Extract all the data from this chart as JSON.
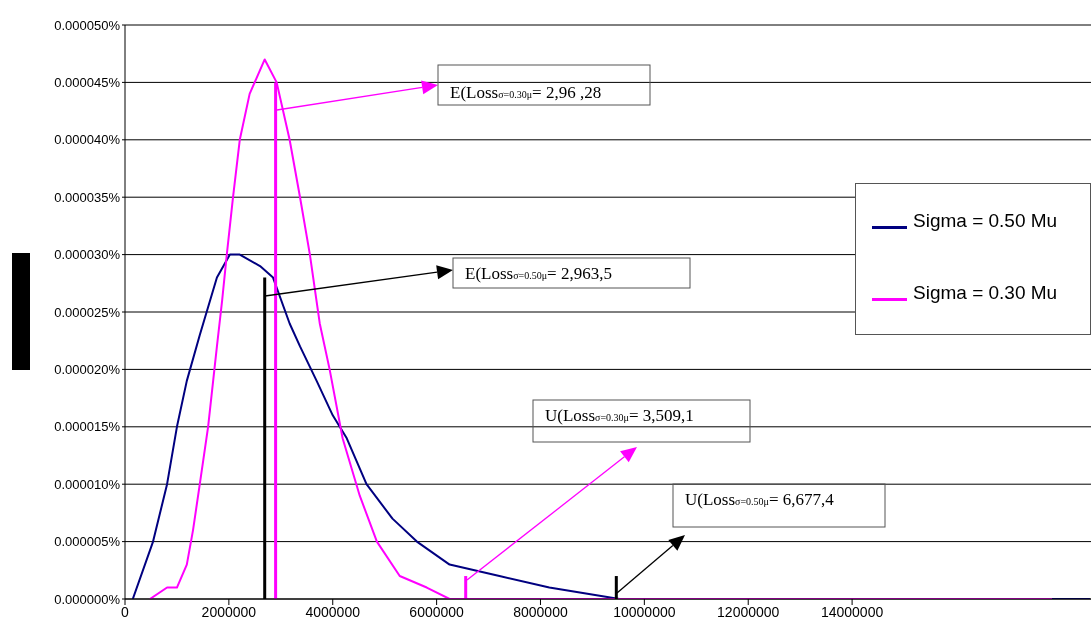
{
  "chart_data": {
    "type": "line",
    "xlim": [
      0,
      18600000
    ],
    "xticks": [
      0,
      2000000,
      4000000,
      6000000,
      8000000,
      10000000,
      12000000,
      14000000
    ],
    "ylim": [
      0,
      5e-05
    ],
    "yticks": [
      {
        "value": 0,
        "label": "0.000000%"
      },
      {
        "value": 5e-06,
        "label": "0.000005%"
      },
      {
        "value": 1e-05,
        "label": "0.000010%"
      },
      {
        "value": 1.5e-05,
        "label": "0.000015%"
      },
      {
        "value": 2e-05,
        "label": "0.000020%"
      },
      {
        "value": 2.5e-05,
        "label": "0.000025%"
      },
      {
        "value": 3e-05,
        "label": "0.000030%"
      },
      {
        "value": 3.5e-05,
        "label": "0.000035%"
      },
      {
        "value": 4e-05,
        "label": "0.000040%"
      },
      {
        "value": 4.5e-05,
        "label": "0.000045%"
      },
      {
        "value": 5e-05,
        "label": "0.000050%"
      }
    ],
    "grid": "y",
    "legend": "right",
    "series": [
      {
        "name": "Sigma = 0.50 Mu",
        "color": "#000080",
        "x": [
          150000,
          540000,
          810000,
          1000000,
          1190000,
          1440000,
          1770000,
          2020000,
          2210000,
          2600000,
          2850000,
          3170000,
          3370000,
          3690000,
          4000000,
          4270000,
          4650000,
          5150000,
          5620000,
          6250000,
          7210000,
          8170000,
          9520000,
          18580000
        ],
        "values": [
          0,
          5e-06,
          1e-05,
          1.5e-05,
          1.9e-05,
          2.3e-05,
          2.8e-05,
          3e-05,
          3e-05,
          2.9e-05,
          2.8e-05,
          2.4e-05,
          2.2e-05,
          1.9e-05,
          1.6e-05,
          1.4e-05,
          1e-05,
          7e-06,
          5e-06,
          3e-06,
          2e-06,
          1e-06,
          0,
          0
        ]
      },
      {
        "name": "Sigma = 0.30 Mu",
        "color": "#ff00ff",
        "x": [
          480000,
          810000,
          1000000,
          1190000,
          1310000,
          1440000,
          1600000,
          1770000,
          1870000,
          1960000,
          2080000,
          2210000,
          2400000,
          2690000,
          2920000,
          3170000,
          3370000,
          3560000,
          3750000,
          3940000,
          4190000,
          4520000,
          4850000,
          5290000,
          5810000,
          6250000,
          9130000,
          17850000
        ],
        "values": [
          0,
          1e-06,
          1e-06,
          3e-06,
          6e-06,
          1e-05,
          1.5e-05,
          2.2e-05,
          2.6e-05,
          3e-05,
          3.5e-05,
          4e-05,
          4.4e-05,
          4.7e-05,
          4.5e-05,
          4e-05,
          3.5e-05,
          3e-05,
          2.4e-05,
          2e-05,
          1.4e-05,
          9e-06,
          5e-06,
          2e-06,
          1e-06,
          0,
          0,
          0
        ]
      },
      {
        "color": "#000000",
        "x": [
          2690000,
          2690000
        ],
        "values": [
          0,
          2.8e-05
        ]
      },
      {
        "color": "#ff00ff",
        "x": [
          2900000,
          2900000
        ],
        "values": [
          0,
          4.5e-05
        ]
      },
      {
        "color": "#ff00ff",
        "x": [
          6560000,
          6560000
        ],
        "values": [
          0,
          2e-06
        ]
      },
      {
        "color": "#000000",
        "x": [
          9460000,
          9460000
        ],
        "values": [
          0,
          2e-06
        ]
      }
    ],
    "annotations": [
      "E(Loss$_{σ=0.30μ}$= 2,96 ,28",
      "E(Loss$_{σ=0.50μ}$= 2,963,5",
      "U(Loss$_{σ=0.30μ}$= 3,509,1",
      "U(Loss$_{σ=0.50μ}$= 6,677,4"
    ]
  }
}
